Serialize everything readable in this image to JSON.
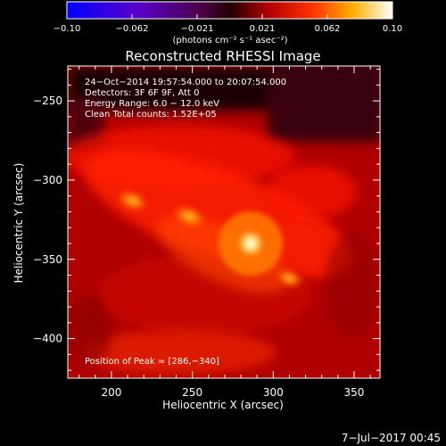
{
  "colorbar": {
    "ticks": [
      "−0.10",
      "−0.062",
      "−0.021",
      "0.021",
      "0.062",
      "0.10"
    ],
    "unit": "(photons cm⁻² s⁻¹ asec⁻²)"
  },
  "image_info": [
    "24−Oct−2014 19:57:54.000 to 20:07:54.000",
    "Detectors: 3F 6F 9F, Att 0",
    "Energy Range: 6.0 − 12.0 keV",
    "Clean     Total counts: 1.52E+05"
  ],
  "peak_label": "Position of Peak = [286,−340]",
  "footer_date": "7−Jul−2017 00:45",
  "colors": {
    "background": "#000000",
    "map_low": "#b90000",
    "map_high": "#ffffff"
  },
  "chart_data": {
    "type": "heatmap",
    "title": "Reconstructed RHESSI Image",
    "xlabel": "Heliocentric X (arcsec)",
    "ylabel": "Heliocentric Y (arcsec)",
    "xlim": [
      173,
      366
    ],
    "ylim": [
      -425,
      -228
    ],
    "xticks": [
      200,
      250,
      300,
      350
    ],
    "yticks": [
      -250,
      -300,
      -350,
      -400
    ],
    "colorbar_range": [
      -0.1,
      0.1
    ],
    "colormap": "blue-purple-red-yellow-white",
    "peak": [
      286,
      -340
    ],
    "sources": [
      {
        "x": 286,
        "y": -340,
        "relative_intensity": 1.0
      },
      {
        "x": 248,
        "y": -323,
        "relative_intensity": 0.68
      },
      {
        "x": 213,
        "y": -313,
        "relative_intensity": 0.6
      },
      {
        "x": 310,
        "y": -362,
        "relative_intensity": 0.45
      }
    ]
  }
}
